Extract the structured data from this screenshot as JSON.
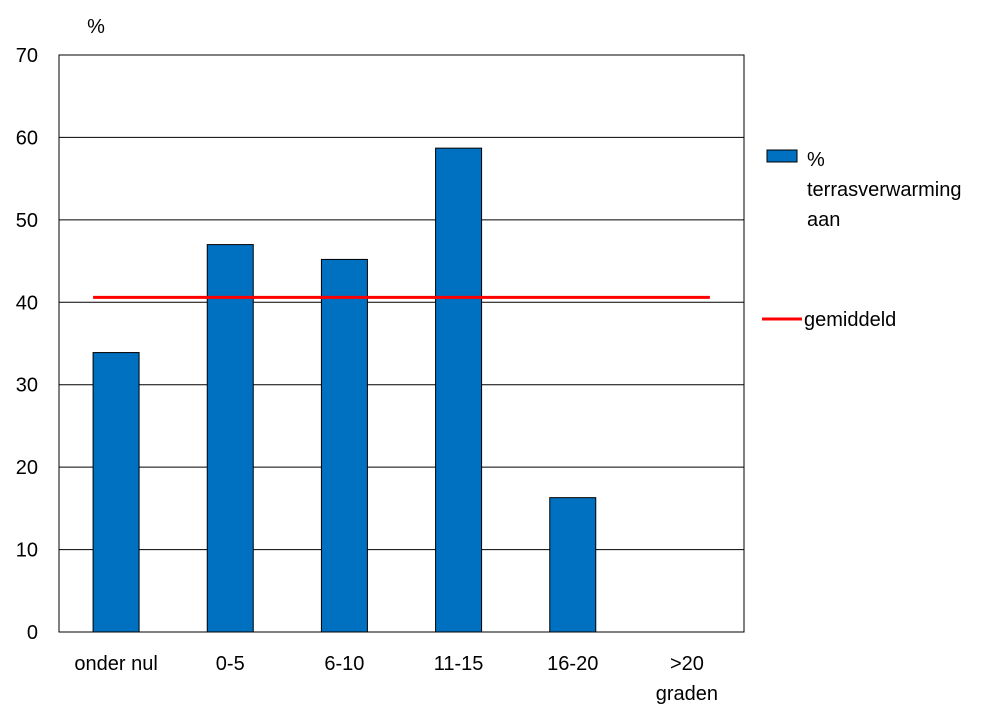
{
  "chart_data": {
    "type": "bar",
    "ylabel": "%",
    "categories": [
      "onder nul",
      "0-5",
      "6-10",
      "11-15",
      "16-20",
      ">20 graden"
    ],
    "category_lines": [
      [
        "onder nul"
      ],
      [
        "0-5"
      ],
      [
        "6-10"
      ],
      [
        "11-15"
      ],
      [
        "16-20"
      ],
      [
        ">20",
        "graden"
      ]
    ],
    "ylim": [
      0,
      70
    ],
    "yticks": [
      0,
      10,
      20,
      30,
      40,
      50,
      60,
      70
    ],
    "grid": true,
    "legend_position": "right",
    "series": [
      {
        "name": "% terrasverwarming aan",
        "legend_lines": [
          "%",
          "terrasverwarming",
          "aan"
        ],
        "type": "bar",
        "color": "#0070c0",
        "values": [
          33.9,
          47.0,
          45.2,
          58.7,
          16.3,
          0
        ]
      }
    ],
    "reference_line": {
      "name": "gemiddeld",
      "value": 40.6,
      "color": "#ff0000"
    }
  }
}
